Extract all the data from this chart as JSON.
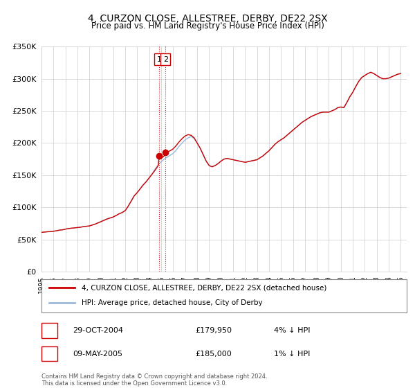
{
  "title": "4, CURZON CLOSE, ALLESTREE, DERBY, DE22 2SX",
  "subtitle": "Price paid vs. HM Land Registry's House Price Index (HPI)",
  "ylim": [
    0,
    350000
  ],
  "yticks": [
    0,
    50000,
    100000,
    150000,
    200000,
    250000,
    300000,
    350000
  ],
  "ytick_labels": [
    "£0",
    "£50K",
    "£100K",
    "£150K",
    "£200K",
    "£250K",
    "£300K",
    "£350K"
  ],
  "xlim_start": 1995.0,
  "xlim_end": 2025.5,
  "xticks": [
    1995,
    1996,
    1997,
    1998,
    1999,
    2000,
    2001,
    2002,
    2003,
    2004,
    2005,
    2006,
    2007,
    2008,
    2009,
    2010,
    2011,
    2012,
    2013,
    2014,
    2015,
    2016,
    2017,
    2018,
    2019,
    2020,
    2021,
    2022,
    2023,
    2024,
    2025
  ],
  "hpi_color": "#9ab8d8",
  "price_color": "#cc0000",
  "dashed_line_color": "#cc0000",
  "marker_color": "#cc0000",
  "transaction1_date": 2004.83,
  "transaction1_price": 179950,
  "transaction2_date": 2005.36,
  "transaction2_price": 185000,
  "legend_label_price": "4, CURZON CLOSE, ALLESTREE, DERBY, DE22 2SX (detached house)",
  "legend_label_hpi": "HPI: Average price, detached house, City of Derby",
  "footer": "Contains HM Land Registry data © Crown copyright and database right 2024.\nThis data is licensed under the Open Government Licence v3.0.",
  "table_rows": [
    {
      "num": "1",
      "date": "29-OCT-2004",
      "price": "£179,950",
      "hpi": "4% ↓ HPI"
    },
    {
      "num": "2",
      "date": "09-MAY-2005",
      "price": "£185,000",
      "hpi": "1% ↓ HPI"
    }
  ],
  "hpi_data": [
    [
      1995.0,
      61000
    ],
    [
      1995.25,
      61500
    ],
    [
      1995.5,
      62000
    ],
    [
      1995.75,
      62200
    ],
    [
      1996.0,
      62800
    ],
    [
      1996.25,
      63500
    ],
    [
      1996.5,
      64500
    ],
    [
      1996.75,
      65000
    ],
    [
      1997.0,
      66000
    ],
    [
      1997.25,
      67000
    ],
    [
      1997.5,
      67500
    ],
    [
      1997.75,
      68000
    ],
    [
      1998.0,
      68500
    ],
    [
      1998.25,
      69000
    ],
    [
      1998.5,
      70000
    ],
    [
      1998.75,
      70500
    ],
    [
      1999.0,
      71000
    ],
    [
      1999.25,
      72500
    ],
    [
      1999.5,
      74000
    ],
    [
      1999.75,
      76000
    ],
    [
      2000.0,
      78000
    ],
    [
      2000.25,
      80000
    ],
    [
      2000.5,
      82000
    ],
    [
      2000.75,
      83500
    ],
    [
      2001.0,
      85000
    ],
    [
      2001.25,
      87500
    ],
    [
      2001.5,
      90000
    ],
    [
      2001.75,
      92000
    ],
    [
      2002.0,
      95000
    ],
    [
      2002.25,
      102000
    ],
    [
      2002.5,
      110000
    ],
    [
      2002.75,
      118000
    ],
    [
      2003.0,
      123000
    ],
    [
      2003.25,
      129000
    ],
    [
      2003.5,
      135000
    ],
    [
      2003.75,
      140000
    ],
    [
      2004.0,
      146000
    ],
    [
      2004.25,
      152000
    ],
    [
      2004.5,
      160000
    ],
    [
      2004.75,
      166000
    ],
    [
      2005.0,
      171000
    ],
    [
      2005.25,
      175000
    ],
    [
      2005.5,
      178000
    ],
    [
      2005.75,
      181000
    ],
    [
      2006.0,
      184000
    ],
    [
      2006.25,
      189000
    ],
    [
      2006.5,
      195000
    ],
    [
      2006.75,
      200000
    ],
    [
      2007.0,
      205000
    ],
    [
      2007.25,
      208000
    ],
    [
      2007.5,
      210000
    ],
    [
      2007.75,
      207000
    ],
    [
      2008.0,
      200000
    ],
    [
      2008.25,
      192000
    ],
    [
      2008.5,
      182000
    ],
    [
      2008.75,
      172000
    ],
    [
      2009.0,
      165000
    ],
    [
      2009.25,
      163000
    ],
    [
      2009.5,
      165000
    ],
    [
      2009.75,
      168000
    ],
    [
      2010.0,
      172000
    ],
    [
      2010.25,
      175000
    ],
    [
      2010.5,
      176000
    ],
    [
      2010.75,
      175000
    ],
    [
      2011.0,
      174000
    ],
    [
      2011.25,
      173000
    ],
    [
      2011.5,
      172000
    ],
    [
      2011.75,
      171000
    ],
    [
      2012.0,
      170000
    ],
    [
      2012.25,
      171000
    ],
    [
      2012.5,
      172000
    ],
    [
      2012.75,
      173000
    ],
    [
      2013.0,
      174000
    ],
    [
      2013.25,
      177000
    ],
    [
      2013.5,
      180000
    ],
    [
      2013.75,
      184000
    ],
    [
      2014.0,
      188000
    ],
    [
      2014.25,
      193000
    ],
    [
      2014.5,
      198000
    ],
    [
      2014.75,
      202000
    ],
    [
      2015.0,
      205000
    ],
    [
      2015.25,
      208000
    ],
    [
      2015.5,
      212000
    ],
    [
      2015.75,
      216000
    ],
    [
      2016.0,
      220000
    ],
    [
      2016.25,
      224000
    ],
    [
      2016.5,
      228000
    ],
    [
      2016.75,
      232000
    ],
    [
      2017.0,
      235000
    ],
    [
      2017.25,
      238000
    ],
    [
      2017.5,
      241000
    ],
    [
      2017.75,
      243000
    ],
    [
      2018.0,
      245000
    ],
    [
      2018.25,
      247000
    ],
    [
      2018.5,
      248000
    ],
    [
      2018.75,
      248000
    ],
    [
      2019.0,
      248000
    ],
    [
      2019.25,
      250000
    ],
    [
      2019.5,
      252000
    ],
    [
      2019.75,
      255000
    ],
    [
      2020.0,
      256000
    ],
    [
      2020.25,
      255000
    ],
    [
      2020.5,
      263000
    ],
    [
      2020.75,
      272000
    ],
    [
      2021.0,
      279000
    ],
    [
      2021.25,
      288000
    ],
    [
      2021.5,
      296000
    ],
    [
      2021.75,
      302000
    ],
    [
      2022.0,
      305000
    ],
    [
      2022.25,
      308000
    ],
    [
      2022.5,
      310000
    ],
    [
      2022.75,
      308000
    ],
    [
      2023.0,
      305000
    ],
    [
      2023.25,
      302000
    ],
    [
      2023.5,
      300000
    ],
    [
      2023.75,
      300000
    ],
    [
      2024.0,
      301000
    ],
    [
      2024.25,
      303000
    ],
    [
      2024.5,
      305000
    ],
    [
      2024.75,
      307000
    ],
    [
      2025.0,
      308000
    ]
  ],
  "price_data": [
    [
      1995.0,
      61000
    ],
    [
      1995.25,
      61500
    ],
    [
      1995.5,
      62000
    ],
    [
      1995.75,
      62200
    ],
    [
      1996.0,
      62800
    ],
    [
      1996.25,
      63500
    ],
    [
      1996.5,
      64500
    ],
    [
      1996.75,
      65000
    ],
    [
      1997.0,
      66000
    ],
    [
      1997.25,
      67000
    ],
    [
      1997.5,
      67500
    ],
    [
      1997.75,
      68000
    ],
    [
      1998.0,
      68500
    ],
    [
      1998.25,
      69000
    ],
    [
      1998.5,
      70000
    ],
    [
      1998.75,
      70500
    ],
    [
      1999.0,
      71000
    ],
    [
      1999.25,
      72500
    ],
    [
      1999.5,
      74000
    ],
    [
      1999.75,
      76000
    ],
    [
      2000.0,
      78000
    ],
    [
      2000.25,
      80000
    ],
    [
      2000.5,
      82000
    ],
    [
      2000.75,
      83500
    ],
    [
      2001.0,
      85000
    ],
    [
      2001.25,
      87500
    ],
    [
      2001.5,
      90000
    ],
    [
      2001.75,
      92000
    ],
    [
      2002.0,
      95000
    ],
    [
      2002.25,
      102000
    ],
    [
      2002.5,
      110000
    ],
    [
      2002.75,
      118000
    ],
    [
      2003.0,
      123000
    ],
    [
      2003.25,
      129000
    ],
    [
      2003.5,
      135000
    ],
    [
      2003.75,
      140000
    ],
    [
      2004.0,
      146000
    ],
    [
      2004.25,
      152000
    ],
    [
      2004.5,
      158000
    ],
    [
      2004.75,
      165000
    ],
    [
      2004.83,
      179950
    ],
    [
      2005.0,
      176000
    ],
    [
      2005.25,
      180000
    ],
    [
      2005.36,
      185000
    ],
    [
      2005.5,
      186000
    ],
    [
      2005.75,
      188000
    ],
    [
      2006.0,
      191000
    ],
    [
      2006.25,
      196000
    ],
    [
      2006.5,
      202000
    ],
    [
      2006.75,
      207000
    ],
    [
      2007.0,
      211000
    ],
    [
      2007.25,
      213000
    ],
    [
      2007.5,
      212000
    ],
    [
      2007.75,
      208000
    ],
    [
      2008.0,
      200000
    ],
    [
      2008.25,
      192000
    ],
    [
      2008.5,
      182000
    ],
    [
      2008.75,
      172000
    ],
    [
      2009.0,
      165000
    ],
    [
      2009.25,
      163000
    ],
    [
      2009.5,
      165000
    ],
    [
      2009.75,
      168000
    ],
    [
      2010.0,
      172000
    ],
    [
      2010.25,
      175000
    ],
    [
      2010.5,
      176000
    ],
    [
      2010.75,
      175000
    ],
    [
      2011.0,
      174000
    ],
    [
      2011.25,
      173000
    ],
    [
      2011.5,
      172000
    ],
    [
      2011.75,
      171000
    ],
    [
      2012.0,
      170000
    ],
    [
      2012.25,
      171000
    ],
    [
      2012.5,
      172000
    ],
    [
      2012.75,
      173000
    ],
    [
      2013.0,
      174000
    ],
    [
      2013.25,
      177000
    ],
    [
      2013.5,
      180000
    ],
    [
      2013.75,
      184000
    ],
    [
      2014.0,
      188000
    ],
    [
      2014.25,
      193000
    ],
    [
      2014.5,
      198000
    ],
    [
      2014.75,
      202000
    ],
    [
      2015.0,
      205000
    ],
    [
      2015.25,
      208000
    ],
    [
      2015.5,
      212000
    ],
    [
      2015.75,
      216000
    ],
    [
      2016.0,
      220000
    ],
    [
      2016.25,
      224000
    ],
    [
      2016.5,
      228000
    ],
    [
      2016.75,
      232000
    ],
    [
      2017.0,
      235000
    ],
    [
      2017.25,
      238000
    ],
    [
      2017.5,
      241000
    ],
    [
      2017.75,
      243000
    ],
    [
      2018.0,
      245000
    ],
    [
      2018.25,
      247000
    ],
    [
      2018.5,
      248000
    ],
    [
      2018.75,
      248000
    ],
    [
      2019.0,
      248000
    ],
    [
      2019.25,
      250000
    ],
    [
      2019.5,
      252000
    ],
    [
      2019.75,
      255000
    ],
    [
      2020.0,
      256000
    ],
    [
      2020.25,
      255000
    ],
    [
      2020.5,
      263000
    ],
    [
      2020.75,
      272000
    ],
    [
      2021.0,
      279000
    ],
    [
      2021.25,
      288000
    ],
    [
      2021.5,
      296000
    ],
    [
      2021.75,
      302000
    ],
    [
      2022.0,
      305000
    ],
    [
      2022.25,
      308000
    ],
    [
      2022.5,
      310000
    ],
    [
      2022.75,
      308000
    ],
    [
      2023.0,
      305000
    ],
    [
      2023.25,
      302000
    ],
    [
      2023.5,
      300000
    ],
    [
      2023.75,
      300000
    ],
    [
      2024.0,
      301000
    ],
    [
      2024.25,
      303000
    ],
    [
      2024.5,
      305000
    ],
    [
      2024.75,
      307000
    ],
    [
      2025.0,
      308000
    ]
  ]
}
